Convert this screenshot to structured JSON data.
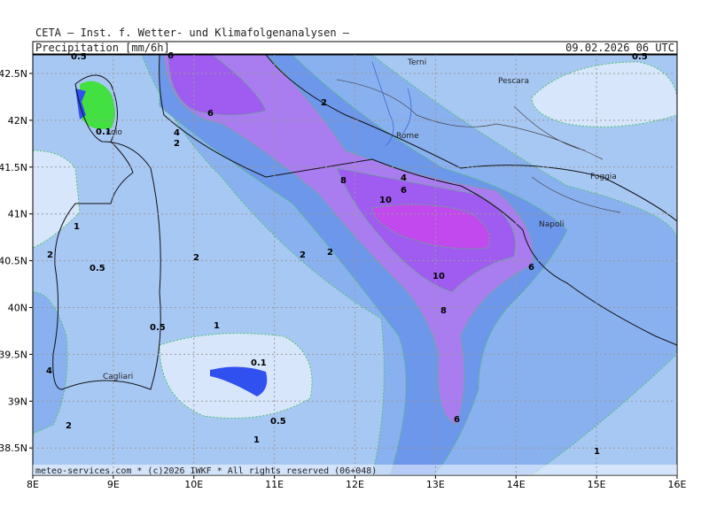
{
  "header": {
    "title": "CETA — Inst. f. Wetter- und Klimafolgenanalysen —",
    "variable": "Precipitation [mm/6h]",
    "valid_time": "09.02.2026 06 UTC"
  },
  "footer": "meteo-services.com * (c)2026 IWKF * All rights reserved (06+048)",
  "map": {
    "lon_labels": [
      "8E",
      "9E",
      "10E",
      "11E",
      "12E",
      "13E",
      "14E",
      "15E",
      "16E"
    ],
    "lat_labels": [
      "42.5N",
      "42N",
      "41.5N",
      "41N",
      "40.5N",
      "40N",
      "39.5N",
      "39N",
      "38.5N"
    ],
    "places": [
      "Terni",
      "Pescara",
      "Rome",
      "Foggia",
      "Napoli",
      "Cagliari",
      "ccio"
    ],
    "contour_labels": [
      "0.5",
      "6",
      "0.5",
      "2",
      "6",
      "0.1",
      "4",
      "2",
      "4",
      "8",
      "6",
      "10",
      "1",
      "2",
      "0.5",
      "2",
      "2",
      "2",
      "6",
      "10",
      "8",
      "0.5",
      "1",
      "0.1",
      "4",
      "0.5",
      "6",
      "2",
      "1",
      "1"
    ]
  }
}
